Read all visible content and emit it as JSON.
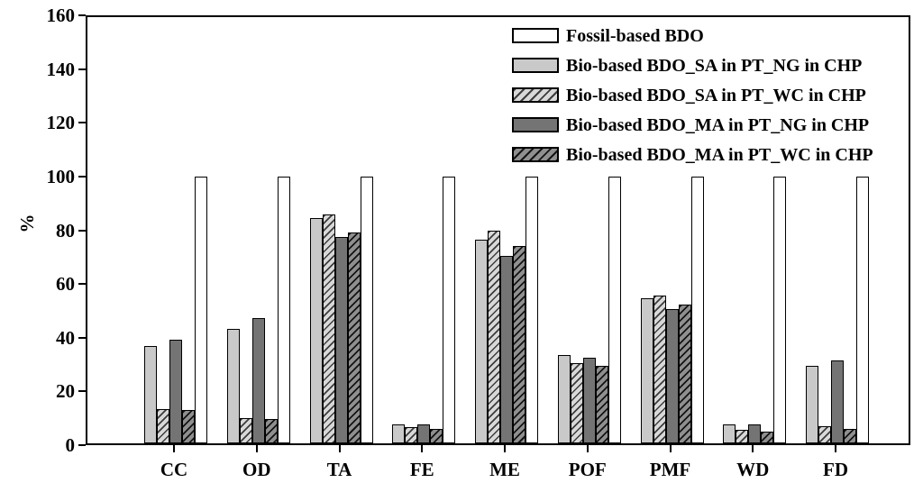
{
  "chart_data": {
    "type": "bar",
    "title": "",
    "xlabel": "",
    "ylabel": "%",
    "ylim": [
      0,
      160
    ],
    "yticks": [
      0,
      20,
      40,
      60,
      80,
      100,
      120,
      140,
      160
    ],
    "grid": false,
    "legend_position": "top-right",
    "categories": [
      "CC",
      "OD",
      "TA",
      "FE",
      "ME",
      "POF",
      "PMF",
      "WD",
      "FD"
    ],
    "series": [
      {
        "name": "Fossil-based BDO",
        "style": "fossil",
        "values": [
          100,
          100,
          100,
          100,
          100,
          100,
          100,
          100,
          100
        ]
      },
      {
        "name": "Bio-based BDO_SA in PT_NG in CHP",
        "style": "light",
        "values": [
          36.5,
          43,
          84.5,
          7,
          76.5,
          33,
          54.5,
          7,
          29
        ]
      },
      {
        "name": "Bio-based BDO_SA in PT_WC in CHP",
        "style": "light-hatch",
        "values": [
          13,
          9.5,
          86,
          6,
          80,
          30,
          55.5,
          5,
          6.5
        ]
      },
      {
        "name": "Bio-based BDO_MA in PT_NG in CHP",
        "style": "dark",
        "values": [
          39,
          47,
          77.5,
          7,
          70.5,
          32,
          50.5,
          7,
          31
        ]
      },
      {
        "name": "Bio-based BDO_MA in PT_WC in CHP",
        "style": "dark-hatch",
        "values": [
          12.5,
          9,
          79,
          5.5,
          74,
          29,
          52,
          4.5,
          5.5
        ]
      }
    ],
    "bar_draw_order": [
      "light",
      "light-hatch",
      "dark",
      "dark-hatch",
      "fossil"
    ]
  },
  "colors": {
    "background": "#ffffff",
    "axis": "#000000",
    "fossil_fill": "#ffffff",
    "light_fill": "#c9c9c9",
    "light_hatch_bg": "#d8d8d8",
    "dark_fill": "#747474",
    "dark_hatch_bg": "#8f8f8f",
    "hatch_line": "#141414",
    "text": "#000000"
  }
}
